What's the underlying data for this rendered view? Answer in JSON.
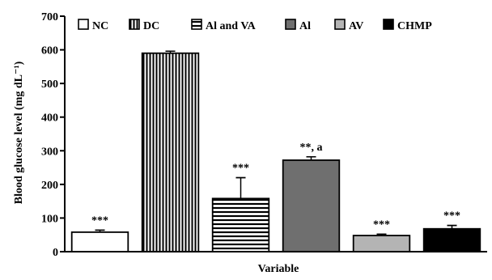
{
  "chart_data": {
    "type": "bar",
    "categories": [
      "NC",
      "DC",
      "Al and VA",
      "Al",
      "AV",
      "CHMP"
    ],
    "values": [
      58,
      590,
      158,
      272,
      48,
      68
    ],
    "errors": [
      6,
      6,
      62,
      10,
      4,
      10
    ],
    "annotations": [
      "***",
      "",
      "***",
      "**, a",
      "***",
      "***"
    ],
    "patterns": [
      "white",
      "vertical-lines",
      "horizontal-lines",
      "darkgray",
      "lightgray",
      "black"
    ],
    "colors": {
      "NC": "#ffffff",
      "DC": "#ffffff",
      "Al and VA": "#ffffff",
      "Al": "#6f6f6f",
      "AV": "#b4b4b4",
      "CHMP": "#000000"
    },
    "xlabel": "Variable",
    "ylabel": "Blood glucose level (mg dL⁻¹)",
    "ylim": [
      0,
      700
    ],
    "yticks": [
      0,
      100,
      200,
      300,
      400,
      500,
      600,
      700
    ],
    "legend": [
      "NC",
      "DC",
      "Al and VA",
      "Al",
      "AV",
      "CHMP"
    ],
    "legend_position": "top",
    "grid": false
  }
}
